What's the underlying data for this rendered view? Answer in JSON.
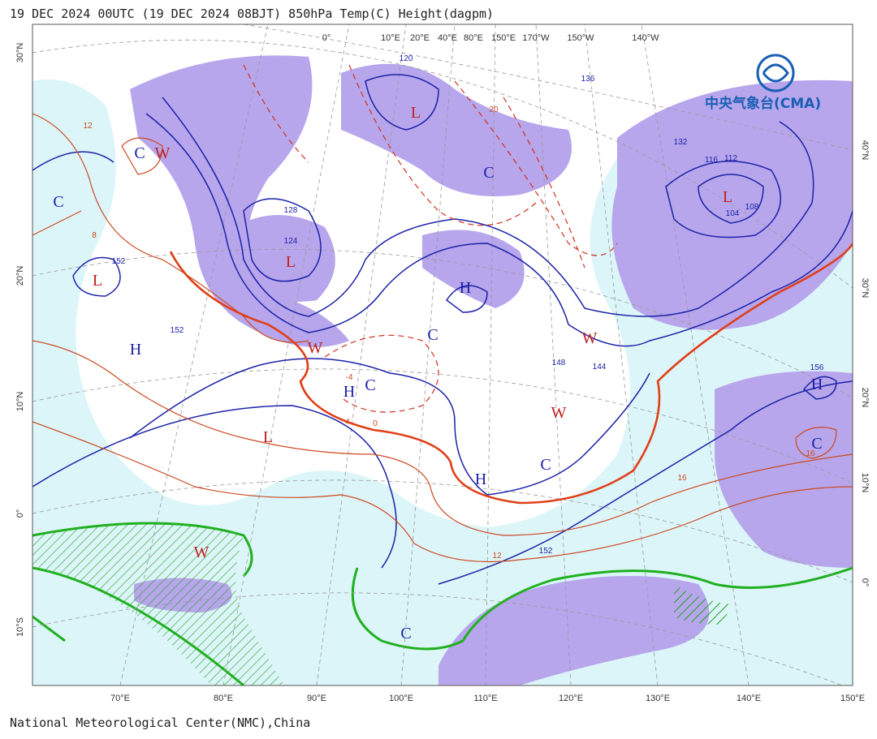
{
  "header": {
    "title": "19 DEC 2024 00UTC (19 DEC 2024 08BJT) 850hPa Temp(C) Height(dagpm)"
  },
  "logo": {
    "text": "中央气象台(CMA)"
  },
  "axes": {
    "bottom": [
      "70°E",
      "80°E",
      "90°E",
      "100°E",
      "110°E",
      "120°E",
      "130°E",
      "140°E",
      "150°E"
    ],
    "top": [
      "0°",
      "10°E",
      "20°E",
      "40°E",
      "80°E",
      "150°E",
      "170°W",
      "150°W",
      "140°W"
    ],
    "left": [
      "30°N",
      "20°N",
      "10°N",
      "0°",
      "10°S"
    ],
    "right": [
      "40°N",
      "30°N",
      "20°N",
      "10°N",
      "0°"
    ]
  },
  "systems": [
    "C",
    "C",
    "W",
    "L",
    "H",
    "L",
    "W",
    "L",
    "C",
    "H",
    "C",
    "H",
    "C",
    "L",
    "W",
    "W",
    "H",
    "C",
    "W",
    "C",
    "L",
    "H",
    "C"
  ],
  "contour_labels": [
    "152",
    "128",
    "124",
    "120",
    "136",
    "104",
    "108",
    "112",
    "116",
    "132",
    "156",
    "152",
    "148",
    "144",
    "152",
    "16",
    "20",
    "12",
    "8",
    "4",
    "0",
    "-4",
    "16",
    "12"
  ],
  "footer": {
    "credit": "National Meteorological Center(NMC),China"
  }
}
